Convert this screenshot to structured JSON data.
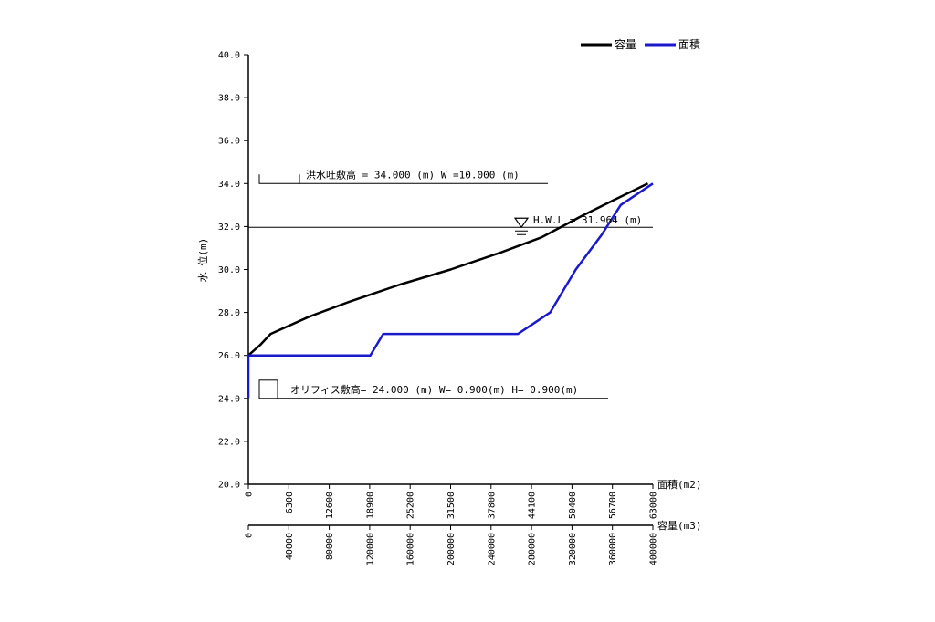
{
  "chart_data": {
    "type": "line",
    "title": "",
    "ylabel": "水 位(m)",
    "ylim": [
      20,
      40
    ],
    "y_ticks": [
      "20.0",
      "22.0",
      "24.0",
      "26.0",
      "28.0",
      "30.0",
      "32.0",
      "34.0",
      "36.0",
      "38.0",
      "40.0"
    ],
    "axes": {
      "area": {
        "label": "面積(m2)",
        "lim": [
          0,
          63000
        ],
        "ticks": [
          "0",
          "6300",
          "12600",
          "18900",
          "25200",
          "31500",
          "37800",
          "44100",
          "50400",
          "56700",
          "63000"
        ]
      },
      "volume": {
        "label": "容量(m3)",
        "lim": [
          0,
          400000
        ],
        "ticks": [
          "0",
          "40000",
          "80000",
          "120000",
          "160000",
          "200000",
          "240000",
          "280000",
          "320000",
          "360000",
          "400000"
        ]
      }
    },
    "legend": [
      "容量",
      "面積"
    ],
    "legend_position": "top-right",
    "colors": {
      "volume": "#000000",
      "area": "#1a1acc"
    },
    "series": [
      {
        "name": "容量",
        "axis": "volume",
        "points": [
          [
            0,
            26.0
          ],
          [
            12000,
            26.5
          ],
          [
            22000,
            27.0
          ],
          [
            60000,
            27.8
          ],
          [
            100000,
            28.5
          ],
          [
            150000,
            29.3
          ],
          [
            200000,
            30.0
          ],
          [
            250000,
            30.8
          ],
          [
            290000,
            31.5
          ],
          [
            330000,
            32.5
          ],
          [
            360000,
            33.2
          ],
          [
            395000,
            34.0
          ]
        ]
      },
      {
        "name": "面積",
        "axis": "area",
        "points": [
          [
            0,
            24.0
          ],
          [
            0,
            26.0
          ],
          [
            19000,
            26.0
          ],
          [
            21000,
            27.0
          ],
          [
            42000,
            27.0
          ],
          [
            47000,
            28.0
          ],
          [
            51000,
            30.0
          ],
          [
            55000,
            31.6
          ],
          [
            58000,
            33.0
          ],
          [
            63000,
            34.0
          ]
        ]
      }
    ],
    "annotations": {
      "spillway": {
        "text": "洪水吐敷高 = 34.000 (m) W =10.000 (m)",
        "level": 34.0
      },
      "hwl": {
        "text": "H.W.L = 31.964 (m)",
        "level": 31.964
      },
      "orifice": {
        "text": "オリフィス敷高= 24.000 (m) W= 0.900(m) H= 0.900(m)",
        "level": 24.0
      }
    }
  }
}
